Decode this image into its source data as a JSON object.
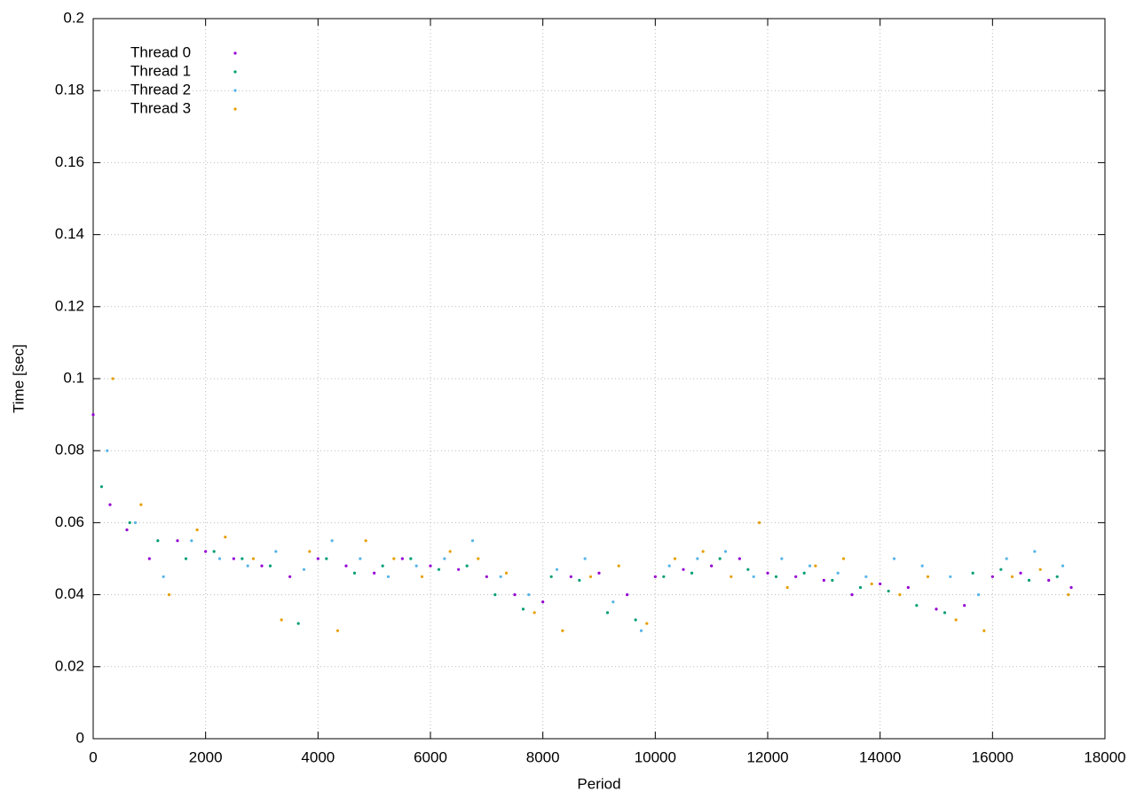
{
  "chart_data": {
    "type": "scatter",
    "xlabel": "Period",
    "ylabel": "Time [sec]",
    "xlim": [
      0,
      18000
    ],
    "xticks": [
      0,
      2000,
      4000,
      6000,
      8000,
      10000,
      12000,
      14000,
      16000,
      18000
    ],
    "ylim": [
      0,
      0.2
    ],
    "yticks": [
      0,
      0.02,
      0.04,
      0.06,
      0.08,
      0.1,
      0.12,
      0.14,
      0.16,
      0.18,
      0.2
    ],
    "grid": true,
    "legend": "upper left",
    "series": [
      {
        "name": "Thread 0",
        "color": "#9400d3",
        "x": [
          0,
          300,
          600,
          1000,
          1500,
          2000,
          2500,
          3000,
          3500,
          4000,
          4500,
          5000,
          5500,
          6000,
          6500,
          7000,
          7500,
          8000,
          8500,
          9000,
          9500,
          10000,
          10500,
          11000,
          11500,
          12000,
          12500,
          13000,
          13500,
          14000,
          14500,
          15000,
          15500,
          16000,
          16500,
          17000,
          17400
        ],
        "values": [
          0.09,
          0.065,
          0.058,
          0.05,
          0.055,
          0.052,
          0.05,
          0.048,
          0.045,
          0.05,
          0.048,
          0.046,
          0.05,
          0.048,
          0.047,
          0.045,
          0.04,
          0.038,
          0.045,
          0.046,
          0.04,
          0.045,
          0.047,
          0.048,
          0.05,
          0.046,
          0.045,
          0.044,
          0.04,
          0.043,
          0.042,
          0.036,
          0.037,
          0.045,
          0.046,
          0.044,
          0.042
        ]
      },
      {
        "name": "Thread 1",
        "color": "#009e73",
        "x": [
          150,
          650,
          1150,
          1650,
          2150,
          2650,
          3150,
          3650,
          4150,
          4650,
          5150,
          5650,
          6150,
          6650,
          7150,
          7650,
          8150,
          8650,
          9150,
          9650,
          10150,
          10650,
          11150,
          11650,
          12150,
          12650,
          13150,
          13650,
          14150,
          14650,
          15150,
          15650,
          16150,
          16650,
          17150
        ],
        "values": [
          0.07,
          0.06,
          0.055,
          0.05,
          0.052,
          0.05,
          0.048,
          0.032,
          0.05,
          0.046,
          0.048,
          0.05,
          0.047,
          0.048,
          0.04,
          0.036,
          0.045,
          0.044,
          0.035,
          0.033,
          0.045,
          0.046,
          0.05,
          0.047,
          0.045,
          0.046,
          0.044,
          0.042,
          0.041,
          0.037,
          0.035,
          0.046,
          0.047,
          0.044,
          0.045
        ]
      },
      {
        "name": "Thread 2",
        "color": "#56b4e9",
        "x": [
          250,
          750,
          1250,
          1750,
          2250,
          2750,
          3250,
          3750,
          4250,
          4750,
          5250,
          5750,
          6250,
          6750,
          7250,
          7750,
          8250,
          8750,
          9250,
          9750,
          10250,
          10750,
          11250,
          11750,
          12250,
          12750,
          13250,
          13750,
          14250,
          14750,
          15250,
          15750,
          16250,
          16750,
          17250
        ],
        "values": [
          0.08,
          0.06,
          0.045,
          0.055,
          0.05,
          0.048,
          0.052,
          0.047,
          0.055,
          0.05,
          0.045,
          0.048,
          0.05,
          0.055,
          0.045,
          0.04,
          0.047,
          0.05,
          0.038,
          0.03,
          0.048,
          0.05,
          0.052,
          0.045,
          0.05,
          0.048,
          0.046,
          0.045,
          0.05,
          0.048,
          0.045,
          0.04,
          0.05,
          0.052,
          0.048
        ]
      },
      {
        "name": "Thread 3",
        "color": "#e69f00",
        "x": [
          350,
          850,
          1350,
          1850,
          2350,
          2850,
          3350,
          3850,
          4350,
          4850,
          5350,
          5850,
          6350,
          6850,
          7350,
          7850,
          8350,
          8850,
          9350,
          9850,
          10350,
          10850,
          11350,
          11850,
          12350,
          12850,
          13350,
          13850,
          14350,
          14850,
          15350,
          15850,
          16350,
          16850,
          17350
        ],
        "values": [
          0.1,
          0.065,
          0.04,
          0.058,
          0.056,
          0.05,
          0.033,
          0.052,
          0.03,
          0.055,
          0.05,
          0.045,
          0.052,
          0.05,
          0.046,
          0.035,
          0.03,
          0.045,
          0.048,
          0.032,
          0.05,
          0.052,
          0.045,
          0.06,
          0.042,
          0.048,
          0.05,
          0.043,
          0.04,
          0.045,
          0.033,
          0.03,
          0.045,
          0.047,
          0.04
        ]
      }
    ]
  }
}
